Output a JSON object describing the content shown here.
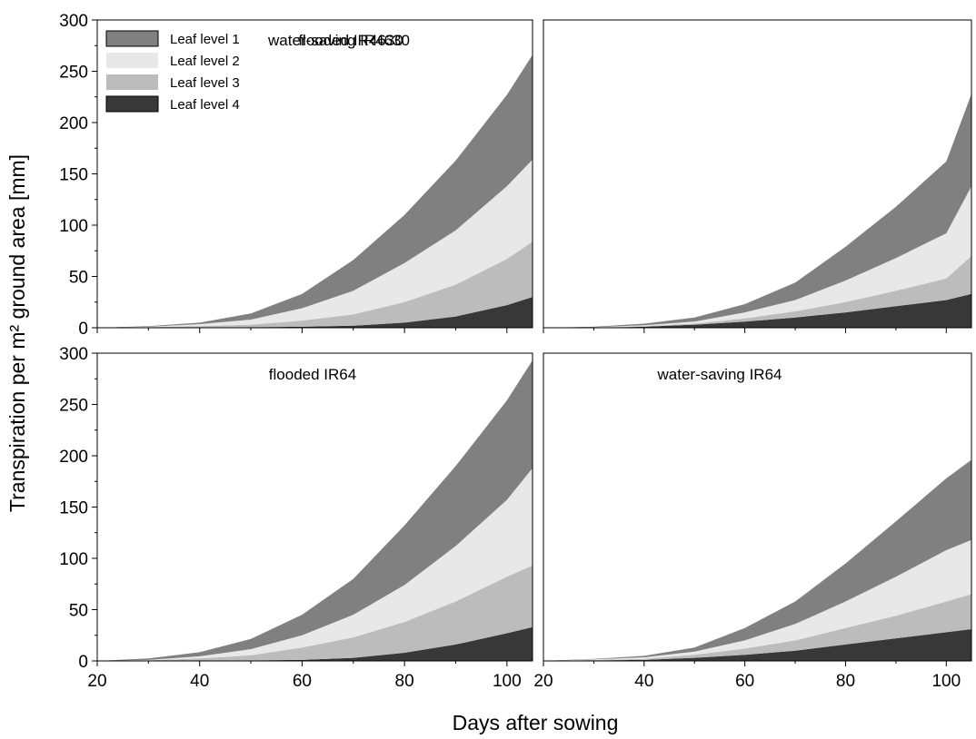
{
  "chart_data": {
    "type": "area",
    "stacked": true,
    "xlabel": "Days after sowing",
    "ylabel": "Transpiration per m² ground area [mm]",
    "xlim": [
      20,
      105
    ],
    "ylim": [
      0,
      300
    ],
    "xticks": [
      20,
      40,
      60,
      80,
      100
    ],
    "yticks": [
      0,
      50,
      100,
      150,
      200,
      250,
      300
    ],
    "grid": false,
    "legend_position": "top-left",
    "series_names": [
      "Leaf level 1",
      "Leaf level 2",
      "Leaf level 3",
      "Leaf level 4"
    ],
    "series_colors": [
      "#808080",
      "#e8e8e8",
      "#bcbcbc",
      "#383838"
    ],
    "x": [
      20,
      30,
      40,
      50,
      60,
      70,
      80,
      90,
      100,
      105
    ],
    "panels": [
      {
        "title": "flooded IR4630",
        "series": [
          {
            "name": "Leaf level 1",
            "values": [
              0,
              0.5,
              1.5,
              6,
              14,
              30,
              47,
              68,
              89,
              102
            ]
          },
          {
            "name": "Leaf level 2",
            "values": [
              0,
              0.5,
              2,
              5,
              12,
              23,
              38,
              53,
              71,
              80
            ]
          },
          {
            "name": "Leaf level 3",
            "values": [
              0,
              0.5,
              1,
              2.5,
              6,
              11,
              20,
              31,
              45,
              54
            ]
          },
          {
            "name": "Leaf level 4",
            "values": [
              0,
              0,
              0.5,
              0.5,
              1,
              2,
              5,
              11,
              22,
              30
            ]
          }
        ]
      },
      {
        "title": "water-saving IR4630",
        "series": [
          {
            "name": "Leaf level 1",
            "values": [
              0,
              0.5,
              1.5,
              4,
              8,
              17,
              33,
              50,
              70,
              90
            ]
          },
          {
            "name": "Leaf level 2",
            "values": [
              0,
              0.5,
              1,
              2,
              6,
              11,
              21,
              32,
              44,
              68
            ]
          },
          {
            "name": "Leaf level 3",
            "values": [
              0,
              0,
              0.5,
              1,
              3,
              6,
              10,
              15,
              21,
              37
            ]
          },
          {
            "name": "Leaf level 4",
            "values": [
              0,
              0,
              1,
              3,
              6,
              10,
              15,
              21,
              27,
              33
            ]
          }
        ]
      },
      {
        "title": "flooded IR64",
        "series": [
          {
            "name": "Leaf level 1",
            "values": [
              0,
              1.5,
              4,
              10,
              20,
              35,
              58,
              78,
              97,
              105
            ]
          },
          {
            "name": "Leaf level 2",
            "values": [
              0,
              0.5,
              2,
              6,
              12,
              22,
              36,
              54,
              75,
              95
            ]
          },
          {
            "name": "Leaf level 3",
            "values": [
              0,
              0.5,
              2,
              5,
              12,
              20,
              30,
              42,
              55,
              60
            ]
          },
          {
            "name": "Leaf level 4",
            "values": [
              0,
              0,
              0.5,
              0.5,
              1,
              3,
              8,
              16,
              27,
              33
            ]
          }
        ]
      },
      {
        "title": "water-saving IR64",
        "series": [
          {
            "name": "Leaf level 1",
            "values": [
              0,
              0.5,
              1.5,
              4,
              12,
              22,
              37,
              54,
              70,
              78
            ]
          },
          {
            "name": "Leaf level 2",
            "values": [
              0,
              0.5,
              1.5,
              3,
              8,
              16,
              26,
              38,
              50,
              53
            ]
          },
          {
            "name": "Leaf level 3",
            "values": [
              0,
              0.5,
              1,
              3,
              6,
              10,
              16,
              22,
              30,
              34
            ]
          },
          {
            "name": "Leaf level 4",
            "values": [
              0,
              0.5,
              1,
              3,
              6,
              10,
              16,
              22,
              28,
              31
            ]
          }
        ]
      }
    ]
  }
}
